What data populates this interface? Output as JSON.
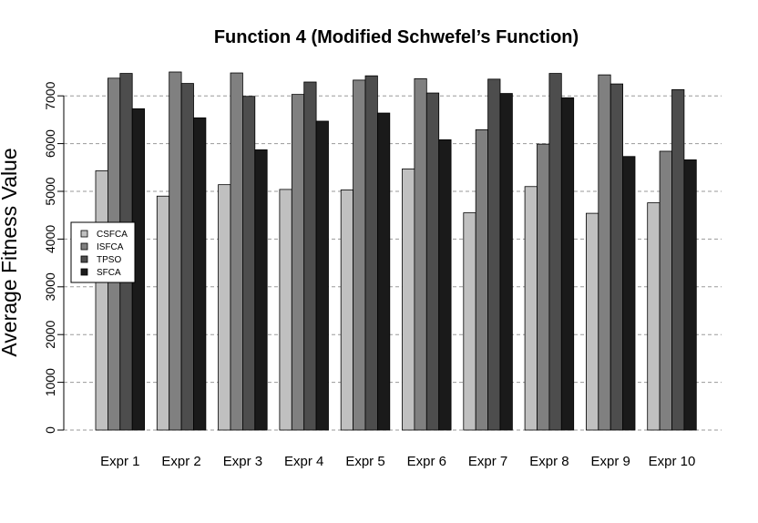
{
  "chart_data": {
    "type": "bar",
    "title": "Function 4 (Modified Schwefel’s Function)",
    "xlabel": "",
    "ylabel": "Average Fitness Value",
    "ylim": [
      0,
      7500
    ],
    "yticks": [
      0,
      1000,
      2000,
      3000,
      4000,
      5000,
      6000,
      7000
    ],
    "grid": true,
    "legend_position": "left",
    "categories": [
      "Expr 1",
      "Expr 2",
      "Expr 3",
      "Expr 4",
      "Expr 5",
      "Expr 6",
      "Expr 7",
      "Expr 8",
      "Expr 9",
      "Expr 10"
    ],
    "series": [
      {
        "name": "CSFCA",
        "color": "#c0c0c0",
        "values": [
          5430,
          4900,
          5140,
          5040,
          5030,
          5470,
          4550,
          5100,
          4540,
          4760
        ]
      },
      {
        "name": "ISFCA",
        "color": "#808080",
        "values": [
          7370,
          7500,
          7480,
          7030,
          7330,
          7360,
          6290,
          5990,
          7440,
          5840
        ]
      },
      {
        "name": "TPSO",
        "color": "#4d4d4d",
        "values": [
          7470,
          7260,
          6990,
          7290,
          7420,
          7060,
          7350,
          7470,
          7250,
          7130
        ]
      },
      {
        "name": "SFCA",
        "color": "#1a1a1a",
        "values": [
          6730,
          6540,
          5870,
          6470,
          6640,
          6080,
          7050,
          6960,
          5730,
          5660
        ]
      }
    ]
  }
}
